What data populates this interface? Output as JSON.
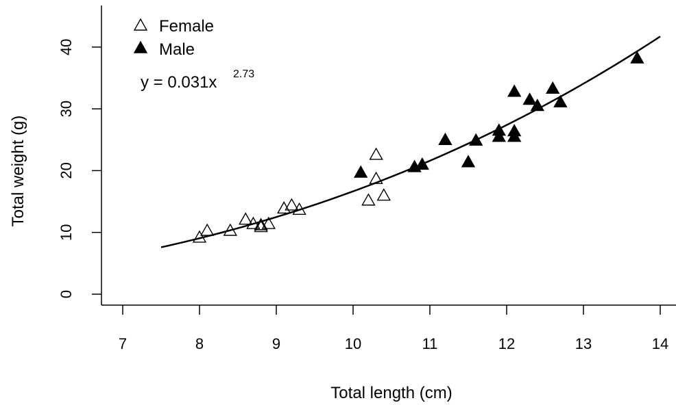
{
  "chart_data": {
    "type": "scatter",
    "xlabel": "Total length (cm)",
    "ylabel": "Total weight (g)",
    "xlim": [
      7,
      14
    ],
    "ylim": [
      0,
      45
    ],
    "x_ticks": [
      "7",
      "8",
      "9",
      "10",
      "11",
      "12",
      "13",
      "14"
    ],
    "y_ticks": [
      "0",
      "10",
      "20",
      "30",
      "40"
    ],
    "legend_position": "top-left",
    "series": [
      {
        "name": "Female",
        "marker": "open-triangle",
        "points": [
          [
            8.0,
            9.2
          ],
          [
            8.1,
            10.3
          ],
          [
            8.4,
            10.3
          ],
          [
            8.6,
            12.1
          ],
          [
            8.7,
            11.4
          ],
          [
            8.8,
            10.9
          ],
          [
            8.8,
            11.2
          ],
          [
            8.9,
            11.4
          ],
          [
            9.1,
            13.9
          ],
          [
            9.2,
            14.4
          ],
          [
            9.3,
            13.7
          ],
          [
            10.2,
            15.2
          ],
          [
            10.3,
            18.7
          ],
          [
            10.3,
            22.6
          ],
          [
            10.4,
            16.0
          ]
        ]
      },
      {
        "name": "Male",
        "marker": "filled-triangle",
        "points": [
          [
            10.1,
            19.7
          ],
          [
            10.8,
            20.6
          ],
          [
            10.9,
            21.0
          ],
          [
            11.2,
            25.0
          ],
          [
            11.5,
            21.4
          ],
          [
            11.6,
            24.9
          ],
          [
            11.9,
            26.5
          ],
          [
            11.9,
            25.5
          ],
          [
            12.1,
            32.8
          ],
          [
            12.1,
            26.4
          ],
          [
            12.1,
            25.5
          ],
          [
            12.3,
            31.5
          ],
          [
            12.4,
            30.5
          ],
          [
            12.6,
            33.3
          ],
          [
            12.7,
            31.1
          ],
          [
            13.7,
            38.2
          ]
        ]
      }
    ],
    "fit": {
      "a": 0.031,
      "b": 2.73,
      "x_range": [
        7.5,
        14.0
      ],
      "equation_main": "y = 0.031x",
      "equation_exp": "2.73"
    }
  }
}
